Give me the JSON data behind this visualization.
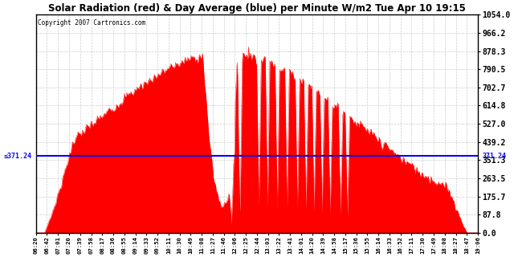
{
  "title": "Solar Radiation (red) & Day Average (blue) per Minute W/m2 Tue Apr 10 19:15",
  "copyright": "Copyright 2007 Cartronics.com",
  "y_max": 1054.0,
  "y_min": 0.0,
  "y_ticks": [
    0.0,
    87.8,
    175.7,
    263.5,
    351.3,
    439.2,
    527.0,
    614.8,
    702.7,
    790.5,
    878.3,
    966.2,
    1054.0
  ],
  "day_average": 371.24,
  "background_color": "#ffffff",
  "fill_color": "#ff0000",
  "avg_line_color": "#0000ff",
  "grid_color": "#cccccc",
  "x_labels": [
    "06:20",
    "06:42",
    "07:01",
    "07:20",
    "07:39",
    "07:58",
    "08:17",
    "08:36",
    "08:55",
    "09:14",
    "09:33",
    "09:52",
    "10:11",
    "10:30",
    "10:49",
    "11:08",
    "11:27",
    "11:46",
    "12:06",
    "12:25",
    "12:44",
    "13:03",
    "13:22",
    "13:41",
    "14:01",
    "14:20",
    "14:39",
    "14:58",
    "15:17",
    "15:36",
    "15:55",
    "16:14",
    "16:33",
    "16:52",
    "17:11",
    "17:30",
    "17:49",
    "18:08",
    "18:27",
    "18:47",
    "19:06"
  ]
}
